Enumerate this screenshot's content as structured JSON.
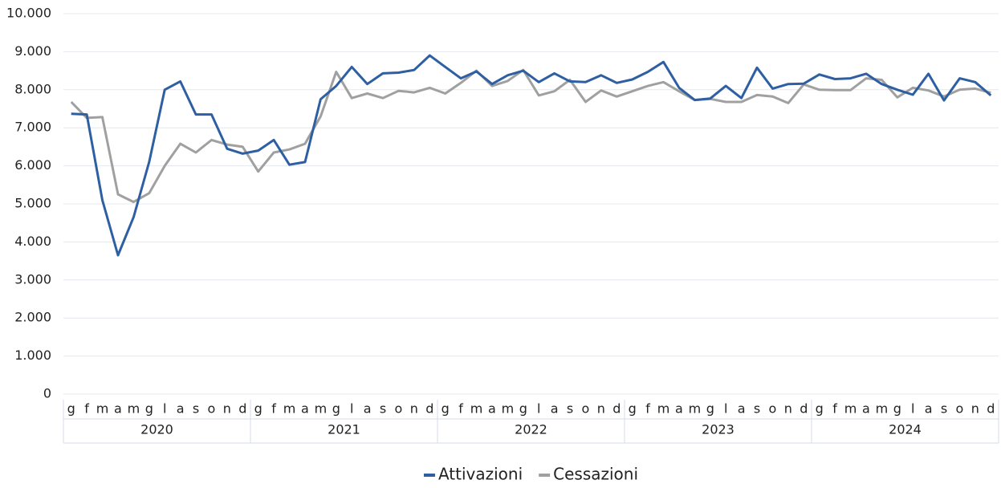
{
  "chart_data": {
    "type": "line",
    "categories": [
      "g",
      "f",
      "m",
      "a",
      "m",
      "g",
      "l",
      "a",
      "s",
      "o",
      "n",
      "d",
      "g",
      "f",
      "m",
      "a",
      "m",
      "g",
      "l",
      "a",
      "s",
      "o",
      "n",
      "d",
      "g",
      "f",
      "m",
      "a",
      "m",
      "g",
      "l",
      "a",
      "s",
      "o",
      "n",
      "d",
      "g",
      "f",
      "m",
      "a",
      "m",
      "g",
      "l",
      "a",
      "s",
      "o",
      "n",
      "d",
      "g",
      "f",
      "m",
      "a",
      "m",
      "g",
      "l",
      "a",
      "s",
      "o",
      "n",
      "d"
    ],
    "years": [
      "2020",
      "2021",
      "2022",
      "2023",
      "2024"
    ],
    "series": [
      {
        "name": "Attivazioni",
        "color": "#2e5fa3",
        "values": [
          7370,
          7350,
          5100,
          3650,
          4650,
          6100,
          8000,
          8220,
          7350,
          7350,
          6450,
          6320,
          6400,
          6680,
          6030,
          6100,
          7750,
          8100,
          8600,
          8150,
          8430,
          8450,
          8520,
          8900,
          8600,
          8300,
          8480,
          8150,
          8380,
          8500,
          8200,
          8430,
          8220,
          8200,
          8380,
          8180,
          8270,
          8470,
          8730,
          8050,
          7730,
          7770,
          8100,
          7780,
          8580,
          8030,
          8150,
          8160,
          8400,
          8280,
          8300,
          8420,
          8150,
          8000,
          7870,
          8420,
          7720,
          8300,
          8200,
          7850
        ]
      },
      {
        "name": "Cessazioni",
        "color": "#a0a0a0",
        "values": [
          7680,
          7260,
          7280,
          5250,
          5050,
          5280,
          6000,
          6580,
          6350,
          6680,
          6560,
          6500,
          5850,
          6350,
          6430,
          6580,
          7300,
          8470,
          7780,
          7900,
          7780,
          7970,
          7930,
          8050,
          7900,
          8180,
          8500,
          8100,
          8230,
          8520,
          7850,
          7960,
          8260,
          7680,
          7980,
          7820,
          7960,
          8100,
          8200,
          7960,
          7730,
          7760,
          7680,
          7680,
          7860,
          7820,
          7650,
          8140,
          8000,
          7990,
          7990,
          8300,
          8260,
          7800,
          8050,
          7980,
          7820,
          8000,
          8030,
          7920
        ]
      }
    ],
    "ylim": [
      0,
      10000
    ],
    "yticks": [
      0,
      {
        "value": 1000,
        "label": "1.000"
      },
      {
        "value": 2000,
        "label": "2.000"
      },
      {
        "value": 3000,
        "label": "3.000"
      },
      {
        "value": 4000,
        "label": "4.000"
      },
      {
        "value": 5000,
        "label": "5.000"
      },
      {
        "value": 6000,
        "label": "6.000"
      },
      {
        "value": 7000,
        "label": "7.000"
      },
      {
        "value": 8000,
        "label": "8.000"
      },
      {
        "value": 9000,
        "label": "9.000"
      },
      {
        "value": 10000,
        "label": "10.000"
      }
    ],
    "grid": true,
    "legend": "bottom"
  }
}
